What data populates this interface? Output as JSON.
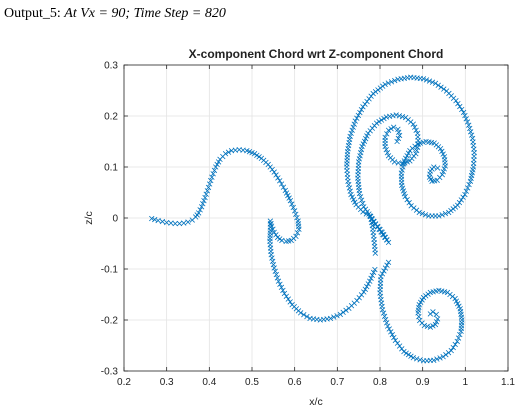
{
  "caption": {
    "prefix": "Output_5: ",
    "equation": "At Vx = 90; Time Step = 820"
  },
  "chart_data": {
    "type": "scatter",
    "title": "X-component Chord wrt Z-component Chord",
    "xlabel": "x/c",
    "ylabel": "z/c",
    "xlim": [
      0.2,
      1.1
    ],
    "ylim": [
      -0.3,
      0.3
    ],
    "xticks": [
      0.2,
      0.3,
      0.4,
      0.5,
      0.6,
      0.7,
      0.8,
      0.9,
      1,
      1.1
    ],
    "yticks": [
      -0.3,
      -0.2,
      -0.1,
      0,
      0.1,
      0.2,
      0.3
    ],
    "xtick_labels": [
      "0.2",
      "0.3",
      "0.4",
      "0.5",
      "0.6",
      "0.7",
      "0.8",
      "0.9",
      "1",
      "1.1"
    ],
    "ytick_labels": [
      "-0.3",
      "-0.2",
      "-0.1",
      "0",
      "0.1",
      "0.2",
      "0.3"
    ],
    "grid": true,
    "marker": "x",
    "color": "#0072BD",
    "series": [
      {
        "values": [
          [
            0.265,
            -0.001
          ],
          [
            0.272,
            -0.003
          ],
          [
            0.28,
            -0.005
          ],
          [
            0.29,
            -0.007
          ],
          [
            0.3,
            -0.009
          ],
          [
            0.31,
            -0.01
          ],
          [
            0.32,
            -0.011
          ],
          [
            0.33,
            -0.011
          ],
          [
            0.34,
            -0.01
          ],
          [
            0.35,
            -0.008
          ],
          [
            0.36,
            -0.004
          ],
          [
            0.368,
            0.002
          ],
          [
            0.375,
            0.01
          ],
          [
            0.382,
            0.022
          ],
          [
            0.39,
            0.04
          ],
          [
            0.398,
            0.06
          ],
          [
            0.406,
            0.08
          ],
          [
            0.415,
            0.1
          ],
          [
            0.425,
            0.115
          ],
          [
            0.438,
            0.126
          ],
          [
            0.452,
            0.132
          ],
          [
            0.47,
            0.134
          ],
          [
            0.488,
            0.132
          ],
          [
            0.506,
            0.126
          ],
          [
            0.522,
            0.117
          ],
          [
            0.538,
            0.105
          ],
          [
            0.552,
            0.09
          ],
          [
            0.565,
            0.073
          ],
          [
            0.578,
            0.054
          ],
          [
            0.59,
            0.034
          ],
          [
            0.6,
            0.014
          ],
          [
            0.608,
            -0.006
          ],
          [
            0.61,
            -0.022
          ],
          [
            0.603,
            -0.036
          ],
          [
            0.592,
            -0.044
          ],
          [
            0.58,
            -0.046
          ],
          [
            0.57,
            -0.044
          ],
          [
            0.56,
            -0.038
          ],
          [
            0.552,
            -0.028
          ],
          [
            0.546,
            -0.016
          ],
          [
            0.543,
            -0.006
          ],
          [
            0.543,
            -0.024
          ],
          [
            0.542,
            -0.046
          ],
          [
            0.545,
            -0.072
          ],
          [
            0.552,
            -0.098
          ],
          [
            0.562,
            -0.124
          ],
          [
            0.576,
            -0.148
          ],
          [
            0.594,
            -0.17
          ],
          [
            0.614,
            -0.186
          ],
          [
            0.636,
            -0.197
          ],
          [
            0.66,
            -0.2
          ],
          [
            0.684,
            -0.197
          ],
          [
            0.707,
            -0.189
          ],
          [
            0.727,
            -0.177
          ],
          [
            0.746,
            -0.162
          ],
          [
            0.762,
            -0.145
          ],
          [
            0.776,
            -0.124
          ],
          [
            0.788,
            -0.101
          ]
        ]
      },
      {
        "values": [
          [
            0.82,
            -0.087
          ],
          [
            0.802,
            -0.115
          ],
          [
            0.8,
            -0.147
          ],
          [
            0.806,
            -0.18
          ],
          [
            0.818,
            -0.212
          ],
          [
            0.836,
            -0.24
          ],
          [
            0.856,
            -0.262
          ],
          [
            0.878,
            -0.274
          ],
          [
            0.902,
            -0.28
          ],
          [
            0.926,
            -0.279
          ],
          [
            0.948,
            -0.272
          ],
          [
            0.967,
            -0.26
          ],
          [
            0.981,
            -0.242
          ],
          [
            0.99,
            -0.222
          ],
          [
            0.992,
            -0.2
          ],
          [
            0.988,
            -0.178
          ],
          [
            0.976,
            -0.158
          ],
          [
            0.958,
            -0.146
          ],
          [
            0.938,
            -0.142
          ],
          [
            0.918,
            -0.146
          ],
          [
            0.902,
            -0.156
          ],
          [
            0.892,
            -0.17
          ],
          [
            0.889,
            -0.186
          ],
          [
            0.893,
            -0.201
          ],
          [
            0.904,
            -0.211
          ],
          [
            0.918,
            -0.214
          ],
          [
            0.93,
            -0.209
          ],
          [
            0.935,
            -0.198
          ],
          [
            0.932,
            -0.189
          ],
          [
            0.924,
            -0.184
          ],
          [
            0.918,
            -0.188
          ]
        ]
      },
      {
        "values": [
          [
            0.789,
            -0.069
          ],
          [
            0.786,
            -0.042
          ],
          [
            0.782,
            -0.015
          ],
          [
            0.778,
            0.003
          ],
          [
            0.79,
            -0.012
          ],
          [
            0.805,
            -0.028
          ],
          [
            0.82,
            -0.048
          ],
          [
            0.776,
            0.004
          ],
          [
            0.76,
            0.012
          ],
          [
            0.744,
            0.026
          ],
          [
            0.732,
            0.046
          ],
          [
            0.725,
            0.072
          ],
          [
            0.722,
            0.1
          ],
          [
            0.724,
            0.13
          ],
          [
            0.73,
            0.16
          ],
          [
            0.742,
            0.19
          ],
          [
            0.76,
            0.218
          ],
          [
            0.784,
            0.244
          ],
          [
            0.812,
            0.262
          ],
          [
            0.842,
            0.272
          ],
          [
            0.872,
            0.276
          ],
          [
            0.902,
            0.273
          ],
          [
            0.93,
            0.264
          ],
          [
            0.956,
            0.249
          ],
          [
            0.978,
            0.23
          ],
          [
            0.996,
            0.207
          ],
          [
            1.008,
            0.182
          ],
          [
            1.017,
            0.156
          ],
          [
            1.021,
            0.128
          ],
          [
            1.019,
            0.1
          ],
          [
            1.012,
            0.072
          ],
          [
            0.999,
            0.046
          ],
          [
            0.982,
            0.025
          ],
          [
            0.961,
            0.011
          ],
          [
            0.938,
            0.004
          ],
          [
            0.914,
            0.004
          ],
          [
            0.892,
            0.011
          ],
          [
            0.873,
            0.024
          ],
          [
            0.859,
            0.042
          ],
          [
            0.851,
            0.064
          ],
          [
            0.85,
            0.088
          ],
          [
            0.857,
            0.112
          ],
          [
            0.87,
            0.132
          ],
          [
            0.888,
            0.145
          ],
          [
            0.908,
            0.15
          ],
          [
            0.927,
            0.147
          ],
          [
            0.942,
            0.136
          ],
          [
            0.951,
            0.12
          ],
          [
            0.953,
            0.102
          ],
          [
            0.946,
            0.085
          ],
          [
            0.934,
            0.074
          ],
          [
            0.922,
            0.072
          ],
          [
            0.916,
            0.08
          ],
          [
            0.918,
            0.092
          ],
          [
            0.926,
            0.1
          ],
          [
            0.935,
            0.098
          ]
        ]
      },
      {
        "values": [
          [
            0.778,
            0.003
          ],
          [
            0.762,
            0.022
          ],
          [
            0.752,
            0.048
          ],
          [
            0.748,
            0.078
          ],
          [
            0.75,
            0.11
          ],
          [
            0.758,
            0.14
          ],
          [
            0.772,
            0.166
          ],
          [
            0.792,
            0.186
          ],
          [
            0.815,
            0.198
          ],
          [
            0.838,
            0.202
          ],
          [
            0.86,
            0.197
          ],
          [
            0.878,
            0.184
          ],
          [
            0.888,
            0.166
          ],
          [
            0.89,
            0.145
          ],
          [
            0.884,
            0.126
          ],
          [
            0.87,
            0.112
          ],
          [
            0.852,
            0.106
          ],
          [
            0.834,
            0.11
          ],
          [
            0.82,
            0.122
          ],
          [
            0.812,
            0.14
          ],
          [
            0.812,
            0.158
          ],
          [
            0.82,
            0.172
          ],
          [
            0.832,
            0.178
          ],
          [
            0.842,
            0.174
          ],
          [
            0.846,
            0.162
          ],
          [
            0.84,
            0.15
          ]
        ]
      }
    ]
  }
}
